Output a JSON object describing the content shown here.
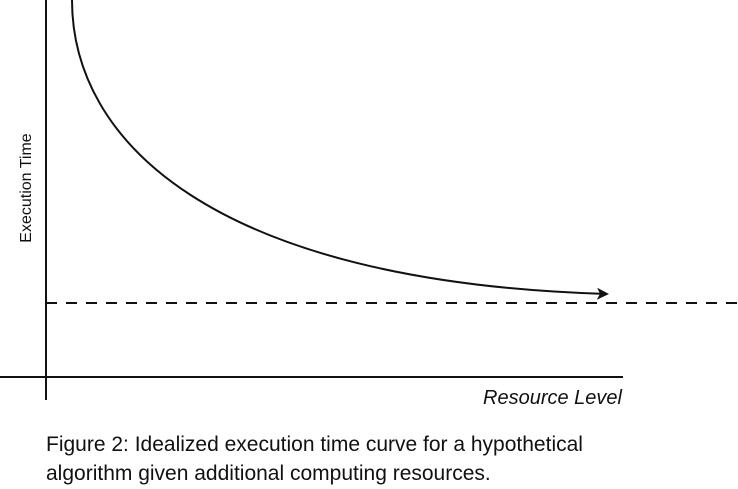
{
  "diagram": {
    "y_axis_label": "Execution Time",
    "x_axis_label": "Resource Level",
    "stroke_color": "#111111",
    "curve": "decreasing curve ending in an arrowhead",
    "asymptote": "dashed horizontal line"
  },
  "caption": {
    "line1": "Figure 2: Idealized execution time curve for a hypothetical",
    "line2": "algorithm given additional computing resources."
  }
}
